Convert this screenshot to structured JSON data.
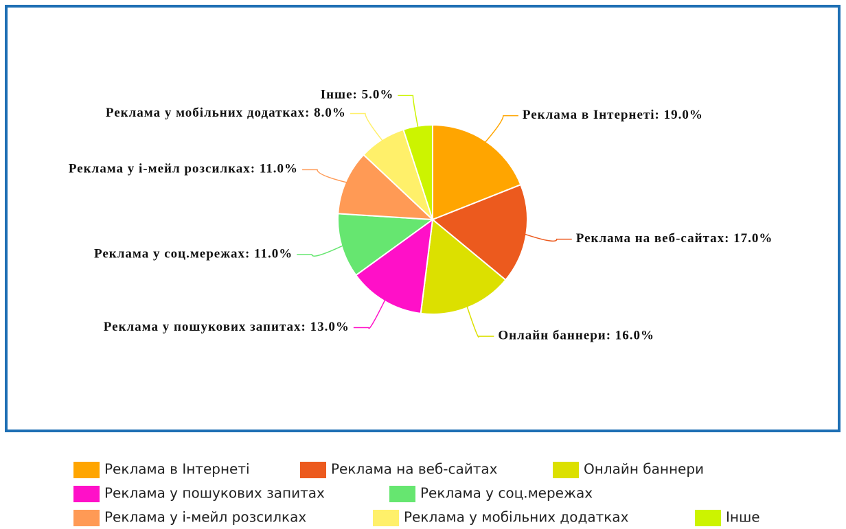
{
  "chart_data": {
    "type": "pie",
    "categories": [
      "Реклама в Інтернеті",
      "Реклама на веб-сайтах",
      "Онлайн баннери",
      "Реклама у пошукових запитах",
      "Реклама у соц.мережах",
      "Реклама у і-мейл розсилках",
      "Реклама у мобільних додатках",
      "Інше"
    ],
    "values": [
      19,
      17,
      16,
      13,
      11,
      11,
      8,
      5
    ],
    "value_labels": [
      "Реклама в Інтернеті: 19.0%",
      "Реклама на веб-сайтах: 17.0%",
      "Онлайн баннери: 16.0%",
      "Реклама у пошукових запитах: 13.0%",
      "Реклама у соц.мережах: 11.0%",
      "Реклама у і-мейл розсилках: 11.0%",
      "Реклама у мобільних додатках: 8.0%",
      "Інше: 5.0%"
    ],
    "colors": [
      "#ffa500",
      "#ec5a1e",
      "#dce000",
      "#ff10c8",
      "#66e670",
      "#ff9a55",
      "#fff06a",
      "#ccf400"
    ]
  }
}
